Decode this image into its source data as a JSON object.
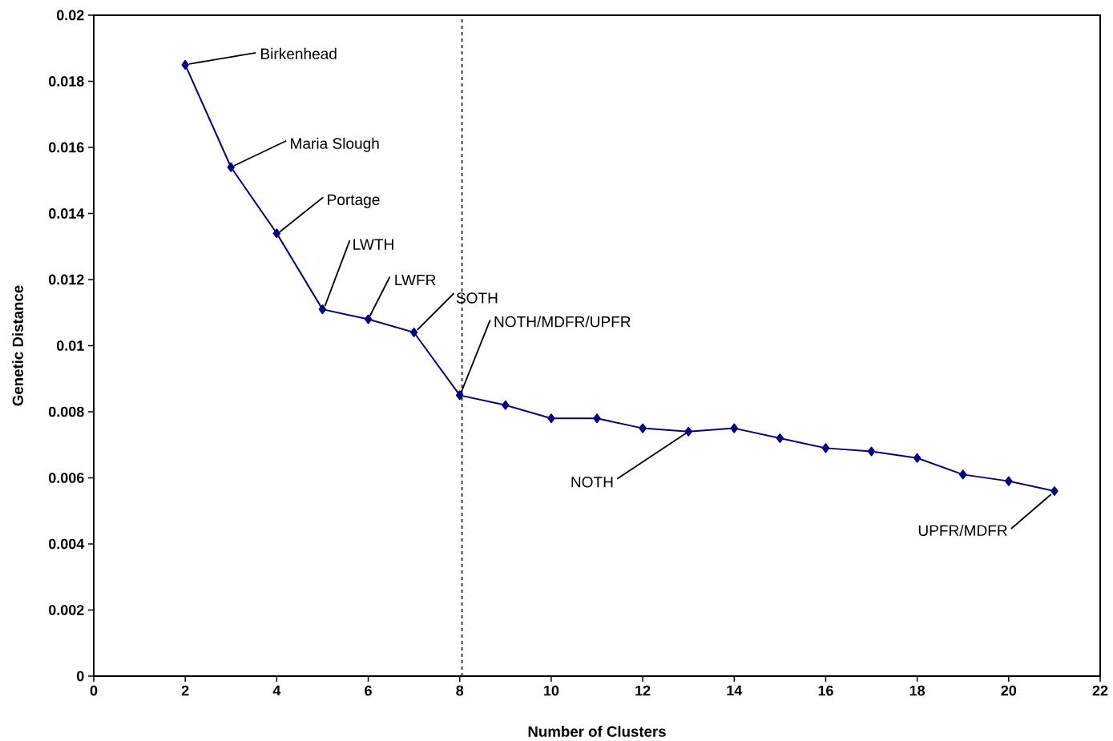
{
  "chart_data": {
    "type": "line",
    "xlabel": "Number of Clusters",
    "ylabel": "Genetic Distance",
    "x": [
      2,
      3,
      4,
      5,
      6,
      7,
      8,
      9,
      10,
      11,
      12,
      13,
      14,
      15,
      16,
      17,
      18,
      19,
      20,
      21
    ],
    "series": [
      {
        "color": "#000080",
        "values": [
          0.0185,
          0.0154,
          0.0134,
          0.0111,
          0.0108,
          0.0104,
          0.0085,
          0.0082,
          0.0078,
          0.0078,
          0.0075,
          0.0074,
          0.0075,
          0.0072,
          0.0069,
          0.0068,
          0.0066,
          0.0061,
          0.0059,
          0.0056
        ]
      }
    ],
    "xlim": [
      0,
      22
    ],
    "ylim": [
      0,
      0.02
    ],
    "xticks": [
      0,
      2,
      4,
      6,
      8,
      10,
      12,
      14,
      16,
      18,
      20,
      22
    ],
    "yticks": [
      0,
      0.002,
      0.004,
      0.006,
      0.008,
      0.01,
      0.012,
      0.014,
      0.016,
      0.018,
      0.02
    ],
    "marker": "diamond",
    "line_style": "solid",
    "grid": false,
    "ref_lines": [
      {
        "axis": "x",
        "value": 8.05,
        "color": "#000000",
        "line_style": "dashed"
      }
    ],
    "annotations": [
      {
        "text": "Birkenhead",
        "x": 2,
        "y": 0.0185
      },
      {
        "text": "Maria Slough",
        "x": 3,
        "y": 0.0154
      },
      {
        "text": "Portage",
        "x": 4,
        "y": 0.0134
      },
      {
        "text": "LWTH",
        "x": 5,
        "y": 0.0111
      },
      {
        "text": "LWFR",
        "x": 6,
        "y": 0.0108
      },
      {
        "text": "SOTH",
        "x": 7,
        "y": 0.0104
      },
      {
        "text": "NOTH/MDFR/UPFR",
        "x": 8,
        "y": 0.0085
      },
      {
        "text": "NOTH",
        "x": 13,
        "y": 0.0074
      },
      {
        "text": "UPFR/MDFR",
        "x": 21,
        "y": 0.0056
      }
    ]
  }
}
